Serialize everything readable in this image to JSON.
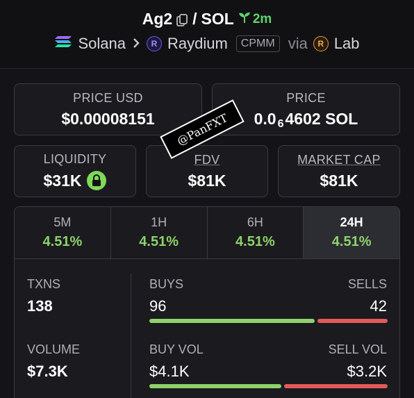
{
  "header": {
    "base_token": "Ag2",
    "separator": "/",
    "quote_token": "SOL",
    "age": "2m",
    "chain": "Solana",
    "dex": "Raydium",
    "pool_type": "CPMM",
    "via_label": "via",
    "launchpad": "Lab"
  },
  "metrics": {
    "price_usd_label": "PRICE USD",
    "price_usd_value": "$0.00008151",
    "price_label": "PRICE",
    "price_prefix": "0.0",
    "price_zeros": "6",
    "price_suffix": "4602 SOL",
    "liquidity_label": "LIQUIDITY",
    "liquidity_value": "$31K",
    "fdv_label": "FDV",
    "fdv_value": "$81K",
    "mcap_label": "MARKET CAP",
    "mcap_value": "$81K"
  },
  "watermark": "@PanFXT",
  "tabs": [
    {
      "label": "5M",
      "value": "4.51%"
    },
    {
      "label": "1H",
      "value": "4.51%"
    },
    {
      "label": "6H",
      "value": "4.51%"
    },
    {
      "label": "24H",
      "value": "4.51%"
    }
  ],
  "activity": {
    "txns_label": "TXNS",
    "txns_value": "138",
    "buys_label": "BUYS",
    "buys_value": "96",
    "sells_label": "SELLS",
    "sells_value": "42",
    "volume_label": "VOLUME",
    "volume_value": "$7.3K",
    "buy_vol_label": "BUY VOL",
    "buy_vol_value": "$4.1K",
    "sell_vol_label": "SELL VOL",
    "sell_vol_value": "$3.2K",
    "buys_share": 0.7,
    "buy_vol_share": 0.56
  },
  "colors": {
    "positive": "#8fd16a",
    "buy_bar": "#8fd16a",
    "sell_bar": "#e05a5a",
    "age": "#5fd36c"
  }
}
